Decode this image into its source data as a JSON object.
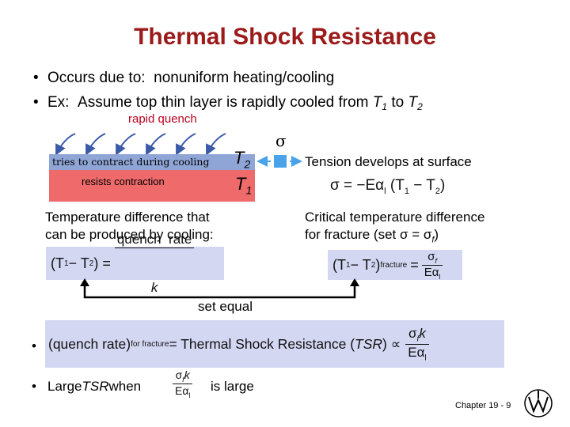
{
  "title": "Thermal Shock Resistance",
  "bullets": {
    "b1_prefix": "Occurs due to:",
    "b1_text": "nonuniform heating/cooling",
    "b2_prefix": "Ex:",
    "b2_text": "Assume top thin layer is rapidly cooled from",
    "b2_t1": "T",
    "b2_s1": "1",
    "b2_to": "to",
    "b2_t2": "T",
    "b2_s2": "2",
    "dot": "•"
  },
  "diagram": {
    "rapid_quench": "rapid quench",
    "tries_to_contract": "tries to contract during cooling",
    "resists_contraction": "resists contraction",
    "t2": "T",
    "t2_sub": "2",
    "t1": "T",
    "t1_sub": "1",
    "sigma": "σ",
    "colors": {
      "top_layer": "#8fa5d6",
      "bottom_block": "#ef6a6a",
      "arrow": "#3b5aa8",
      "element": "#4aa3e8"
    }
  },
  "right_panel": {
    "tension_text": "Tension develops at surface",
    "tension_eq": {
      "lhs": "σ = −Eα",
      "alpha_sub": "l",
      "rest": " (T",
      "s1": "1",
      "minus": " − T",
      "s2": "2",
      "close": ")"
    },
    "critical_line1": "Critical temperature difference",
    "critical_line2_a": "for fracture (set σ = σ",
    "critical_line2_sub": "f",
    "critical_line2_b": ")",
    "critical_eq": {
      "lhs": "(T",
      "s1": "1",
      "minus": " − T",
      "s2": "2",
      "close": ")",
      "sub": "fracture",
      "eq": "=",
      "num": "σ",
      "num_sub": "f",
      "den": "Eα",
      "den_sub": "l"
    }
  },
  "left_panel": {
    "temp_line1": "Temperature difference that",
    "temp_line2": "can be produced by cooling:",
    "temp_eq": {
      "lhs": "(T",
      "s1": "1",
      "minus": " − T",
      "s2": "2",
      "close": ")",
      "eq": "=",
      "num": "quench  rate",
      "den": "k"
    }
  },
  "set_equal": "set equal",
  "tsr_eq": {
    "lhs_a": "(quench  rate)",
    "lhs_sub": "for  fracture",
    "mid": " = Thermal Shock Resistance (",
    "tsr": "TSR",
    "close": ") ∝",
    "num": "σ",
    "num_sub": "f",
    "num_k": "k",
    "den": "Eα",
    "den_sub": "l"
  },
  "large_tsr": {
    "prefix": "Large ",
    "tsr": "TSR",
    "when": " when",
    "num": "σ",
    "num_sub": "f",
    "num_k": "k",
    "den": "Eα",
    "den_sub": "l",
    "suffix": "is large"
  },
  "footer": {
    "chapter": "Chapter 19 -",
    "page": "9"
  }
}
